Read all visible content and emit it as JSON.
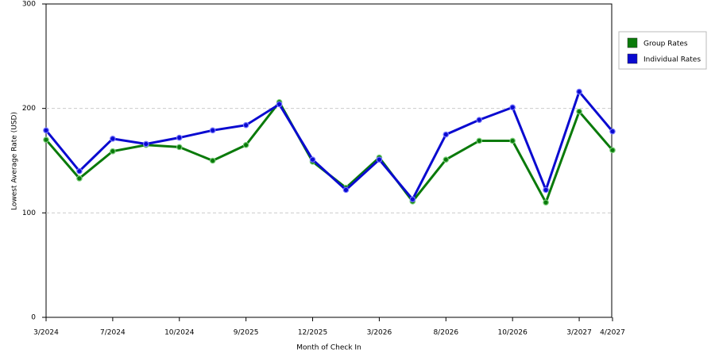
{
  "chart_data": {
    "type": "line",
    "y_label": "Lowest Average Rate (USD)",
    "x_label": "Month of Check In",
    "categories": [
      "3/2024",
      null,
      "7/2024",
      null,
      "10/2024",
      null,
      "9/2025",
      null,
      "12/2025",
      null,
      "3/2026",
      null,
      "8/2026",
      null,
      "10/2026",
      null,
      "3/2027",
      "4/2027"
    ],
    "series": [
      {
        "name": "Group Rates",
        "color": "#0a7a0a",
        "values": [
          170,
          133,
          159,
          165,
          163,
          150,
          165,
          206,
          149,
          124,
          153,
          111,
          151,
          169,
          169,
          110,
          197,
          160
        ]
      },
      {
        "name": "Individual Rates",
        "color": "#0a0ad0",
        "values": [
          179,
          140,
          171,
          166,
          172,
          179,
          184,
          204,
          151,
          122,
          151,
          113,
          175,
          189,
          201,
          122,
          216,
          178
        ]
      }
    ],
    "ylim": [
      0,
      300
    ],
    "yticks": [
      0,
      100,
      200,
      300
    ],
    "grid": true
  }
}
